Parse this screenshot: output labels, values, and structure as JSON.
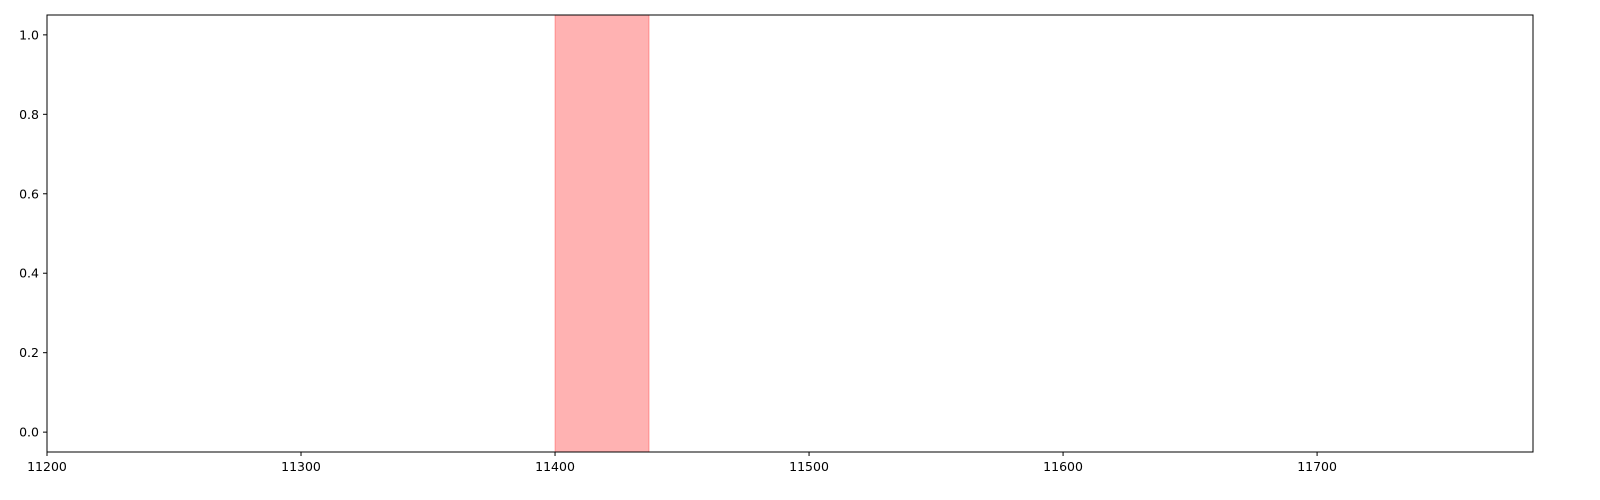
{
  "chart_data": {
    "type": "area",
    "title": "",
    "xlabel": "",
    "ylabel": "",
    "xlim": [
      11200,
      11785
    ],
    "ylim": [
      -0.05,
      1.05
    ],
    "x_ticks": [
      11200,
      11300,
      11400,
      11500,
      11600,
      11700
    ],
    "y_ticks": [
      0.0,
      0.2,
      0.4,
      0.6,
      0.8,
      1.0
    ],
    "x_tick_labels": [
      "11200",
      "11300",
      "11400",
      "11500",
      "11600",
      "11700"
    ],
    "y_tick_labels": [
      "0.0",
      "0.2",
      "0.4",
      "0.6",
      "0.8",
      "1.0"
    ],
    "grid": false,
    "spans": [
      {
        "x_start": 11400,
        "x_end": 11437,
        "color": "#ff0000",
        "alpha": 0.3
      }
    ]
  }
}
